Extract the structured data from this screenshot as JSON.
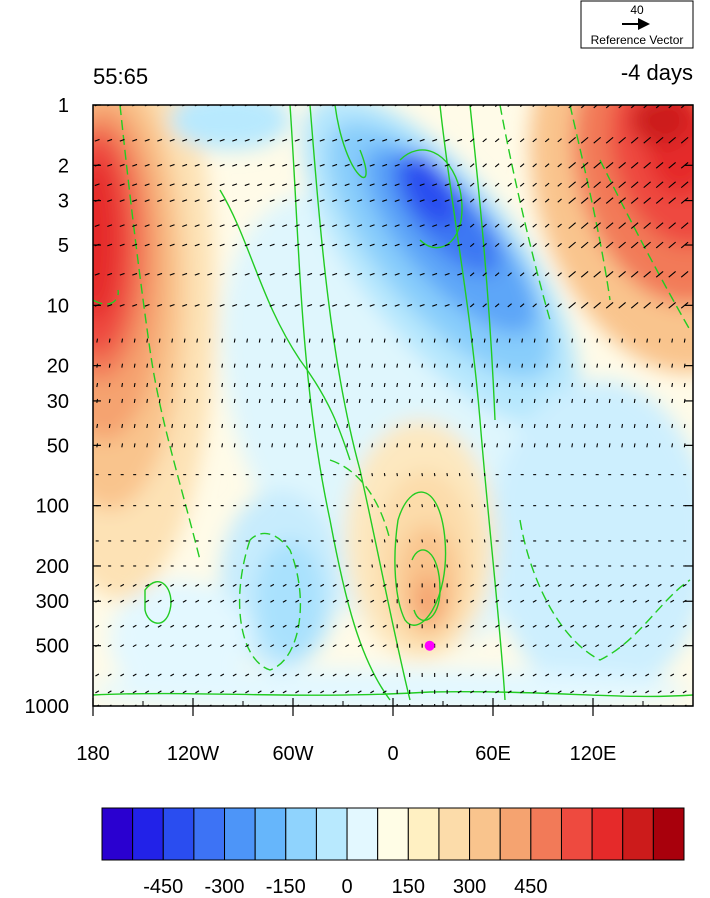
{
  "chart_data": {
    "type": "heatmap",
    "title_left": "55:65",
    "title_right": "-4 days",
    "x_axis": {
      "ticks": [
        {
          "value": -180,
          "label": "180"
        },
        {
          "value": -120,
          "label": "120W"
        },
        {
          "value": -60,
          "label": "60W"
        },
        {
          "value": 0,
          "label": "0"
        },
        {
          "value": 60,
          "label": "60E"
        },
        {
          "value": 120,
          "label": "120E"
        }
      ],
      "range": [
        -180,
        180
      ]
    },
    "y_axis": {
      "scale": "log",
      "reversed": true,
      "range": [
        1,
        1000
      ],
      "ticks": [
        {
          "value": 1,
          "label": "1"
        },
        {
          "value": 2,
          "label": "2"
        },
        {
          "value": 3,
          "label": "3"
        },
        {
          "value": 5,
          "label": "5"
        },
        {
          "value": 10,
          "label": "10"
        },
        {
          "value": 20,
          "label": "20"
        },
        {
          "value": 30,
          "label": "30"
        },
        {
          "value": 50,
          "label": "50"
        },
        {
          "value": 100,
          "label": "100"
        },
        {
          "value": 200,
          "label": "200"
        },
        {
          "value": 300,
          "label": "300"
        },
        {
          "value": 500,
          "label": "500"
        },
        {
          "value": 1000,
          "label": "1000"
        }
      ]
    },
    "colorbar": {
      "tick_labels": [
        "-450",
        "-300",
        "-150",
        "0",
        "150",
        "300",
        "450"
      ],
      "tick_values": [
        -450,
        -300,
        -150,
        0,
        150,
        300,
        450
      ],
      "levels": [
        -525,
        -450,
        -375,
        -300,
        -225,
        -150,
        -75,
        0,
        75,
        150,
        225,
        300,
        375,
        450,
        525
      ],
      "colors": [
        "#2a00d0",
        "#2222e8",
        "#2a4df0",
        "#3d73f5",
        "#4d95f8",
        "#66b6fb",
        "#8fd3fd",
        "#b8e9fe",
        "#e3f8ff",
        "#fffde6",
        "#fff0c2",
        "#fcdcaa",
        "#f9c48d",
        "#f5a370",
        "#f27a58",
        "#ee4a3f",
        "#e52a2a",
        "#cc1b1b",
        "#a8000c"
      ]
    },
    "filled_contours": [
      {
        "name": "red-core-west",
        "value": 525,
        "lon": -172,
        "p": 6
      },
      {
        "name": "red-core-east",
        "value": 525,
        "lon": 160,
        "p": 2
      },
      {
        "name": "blue-core-upper",
        "value": -500,
        "lon": 30,
        "p": 3
      },
      {
        "name": "orange-lower",
        "value": 200,
        "lon": 18,
        "p": 300
      }
    ],
    "reference_vector": {
      "magnitude": "40",
      "label": "Reference Vector"
    },
    "marker": {
      "lon": 22,
      "p": 500,
      "color": "#ff00ff"
    },
    "contour_color": "#22cc22"
  }
}
